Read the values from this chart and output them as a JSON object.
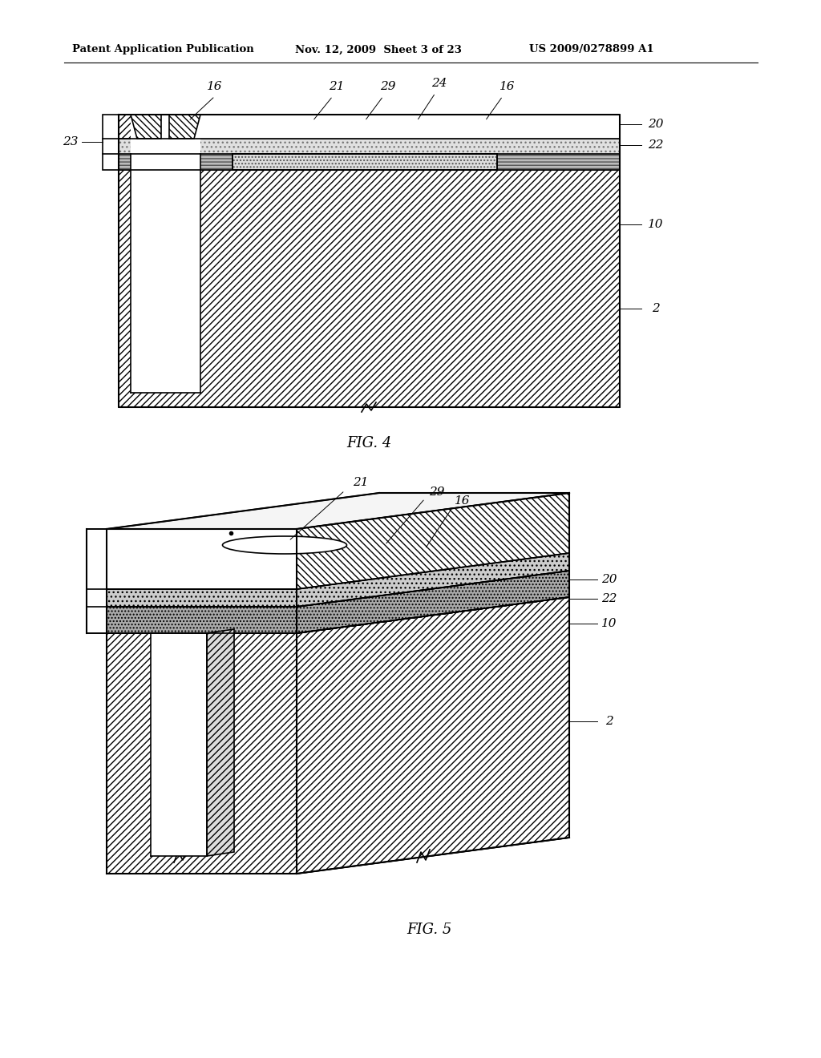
{
  "header_left": "Patent Application Publication",
  "header_mid": "Nov. 12, 2009  Sheet 3 of 23",
  "header_right": "US 2009/0278899 A1",
  "fig4_label": "FIG. 4",
  "fig5_label": "FIG. 5",
  "bg": "#ffffff",
  "lc": "#000000"
}
